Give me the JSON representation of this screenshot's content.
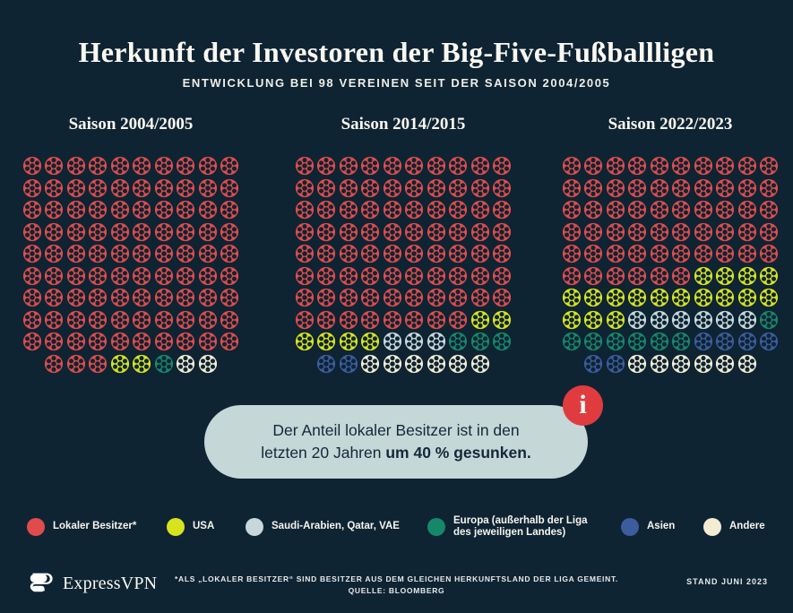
{
  "page": {
    "bg": "#0e2433"
  },
  "header": {
    "title": "Herkunft der Investoren der Big-Five-Fußballligen",
    "subtitle": "ENTWICKLUNG BEI 98 VEREINEN SEIT DER SAISON 2004/2005"
  },
  "colors": {
    "R": "#e04c4c",
    "U": "#d7e31f",
    "S": "#c6d8da",
    "E": "#17876a",
    "B": "#3d5c9d",
    "O": "#f3ecd3"
  },
  "chart_data": {
    "type": "pictogram-waffle",
    "unit": "1 Ball = 1 Verein",
    "total_per_season": 98,
    "categories": [
      "Lokaler Besitzer*",
      "USA",
      "Saudi-Arabien, Qatar, VAE",
      "Europa (außerhalb der Liga des jeweiligen Landes)",
      "Asien",
      "Andere"
    ],
    "category_colors": [
      "#e04c4c",
      "#d7e31f",
      "#c6d8da",
      "#17876a",
      "#3d5c9d",
      "#f3ecd3"
    ],
    "seasons": [
      {
        "label": "Saison 2004/2005",
        "counts": {
          "lokaler_besitzer": 93,
          "usa": 2,
          "saudi_arabien_qatar_vae": 0,
          "europa": 1,
          "asien": 0,
          "andere": 2
        },
        "rows": [
          "RRRRRRRRRR",
          "RRRRRRRRRR",
          "RRRRRRRRRR",
          "RRRRRRRRRR",
          "RRRRRRRRRR",
          "RRRRRRRRRR",
          "RRRRRRRRRR",
          "RRRRRRRRRR",
          "RRRRRRRRRR",
          "RRRUUEOO"
        ]
      },
      {
        "label": "Saison 2014/2015",
        "counts": {
          "lokaler_besitzer": 78,
          "usa": 6,
          "saudi_arabien_qatar_vae": 3,
          "europa": 3,
          "asien": 2,
          "andere": 6
        },
        "rows": [
          "RRRRRRRRRR",
          "RRRRRRRRRR",
          "RRRRRRRRRR",
          "RRRRRRRRRR",
          "RRRRRRRRRR",
          "RRRRRRRRRR",
          "RRRRRRRRRR",
          "RRRRRRRRUU",
          "UUUUSSSEEE",
          "BBOOOOOO"
        ]
      },
      {
        "label": "Saison 2022/2023",
        "counts": {
          "lokaler_besitzer": 56,
          "usa": 17,
          "saudi_arabien_qatar_vae": 6,
          "europa": 7,
          "asien": 6,
          "andere": 6
        },
        "rows": [
          "RRRRRRRRRR",
          "RRRRRRRRRR",
          "RRRRRRRRRR",
          "RRRRRRRRRR",
          "RRRRRRRRRR",
          "RRRRRRUUUU",
          "UUUUUUUUUU",
          "UUUSSSSSSE",
          "EEEEEEBBBB",
          "BBOOOOOO"
        ]
      }
    ]
  },
  "callout": {
    "line1": "Der Anteil lokaler Besitzer ist in den",
    "line2_normal": "letzten 20 Jahren ",
    "line2_bold": "um 40 % gesunken.",
    "icon_glyph": "i"
  },
  "legend": {
    "items": [
      {
        "key": "R",
        "label": "Lokaler Besitzer*"
      },
      {
        "key": "U",
        "label": "USA"
      },
      {
        "key": "S",
        "label": "Saudi-Arabien, Qatar, VAE"
      },
      {
        "key": "E",
        "label": "Europa (außerhalb der Liga\ndes jeweiligen Landes)"
      },
      {
        "key": "B",
        "label": "Asien"
      },
      {
        "key": "O",
        "label": "Andere"
      }
    ]
  },
  "footer": {
    "brand": "ExpressVPN",
    "note1": "*ALS „LOKALER BESITZER“ SIND BESITZER AUS DEM GLEICHEN HERKUNFTSLAND DER LIGA GEMEINT.",
    "note2": "QUELLE: BLOOMBERG",
    "stand": "STAND JUNI 2023"
  }
}
